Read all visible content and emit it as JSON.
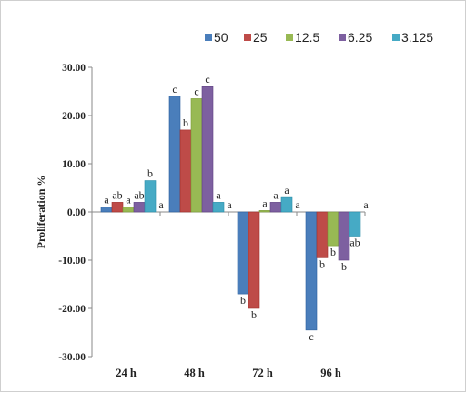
{
  "chart_data": {
    "type": "bar",
    "title": "",
    "xlabel": "",
    "ylabel": "Proliferation %",
    "categories": [
      "24 h",
      "48 h",
      "72 h",
      "96 h"
    ],
    "ylim": [
      -30,
      30
    ],
    "yticks": [
      "30.00",
      "20.00",
      "10.00",
      "0.00",
      "-10.00",
      "-20.00",
      "-30.00"
    ],
    "legend_position": "top",
    "grid": false,
    "series": [
      {
        "name": "50",
        "color": "#4A7EBB",
        "values": [
          1.0,
          24.0,
          -17.0,
          -24.5
        ],
        "labels": [
          "a",
          "c",
          "b",
          "c"
        ]
      },
      {
        "name": "25",
        "color": "#BE4B48",
        "values": [
          2.0,
          17.0,
          -20.0,
          -9.5
        ],
        "labels": [
          "ab",
          "b",
          "b",
          "b"
        ]
      },
      {
        "name": "12.5",
        "color": "#98B954",
        "values": [
          1.0,
          23.5,
          0.3,
          -7.0
        ],
        "labels": [
          "a",
          "c",
          "a",
          "b"
        ]
      },
      {
        "name": "6.25",
        "color": "#7D60A0",
        "values": [
          2.0,
          26.0,
          2.0,
          -10.0
        ],
        "labels": [
          "ab",
          "c",
          "a",
          "b"
        ]
      },
      {
        "name": "3.125",
        "color": "#46AAC5",
        "values": [
          6.5,
          2.0,
          3.0,
          -5.0
        ],
        "labels": [
          "b",
          "a",
          "a",
          "ab"
        ]
      }
    ],
    "extra_labels": [
      {
        "category_index": 0,
        "text": "a"
      },
      {
        "category_index": 1,
        "text": "a"
      },
      {
        "category_index": 2,
        "text": "a"
      },
      {
        "category_index": 3,
        "text": "a"
      }
    ]
  }
}
